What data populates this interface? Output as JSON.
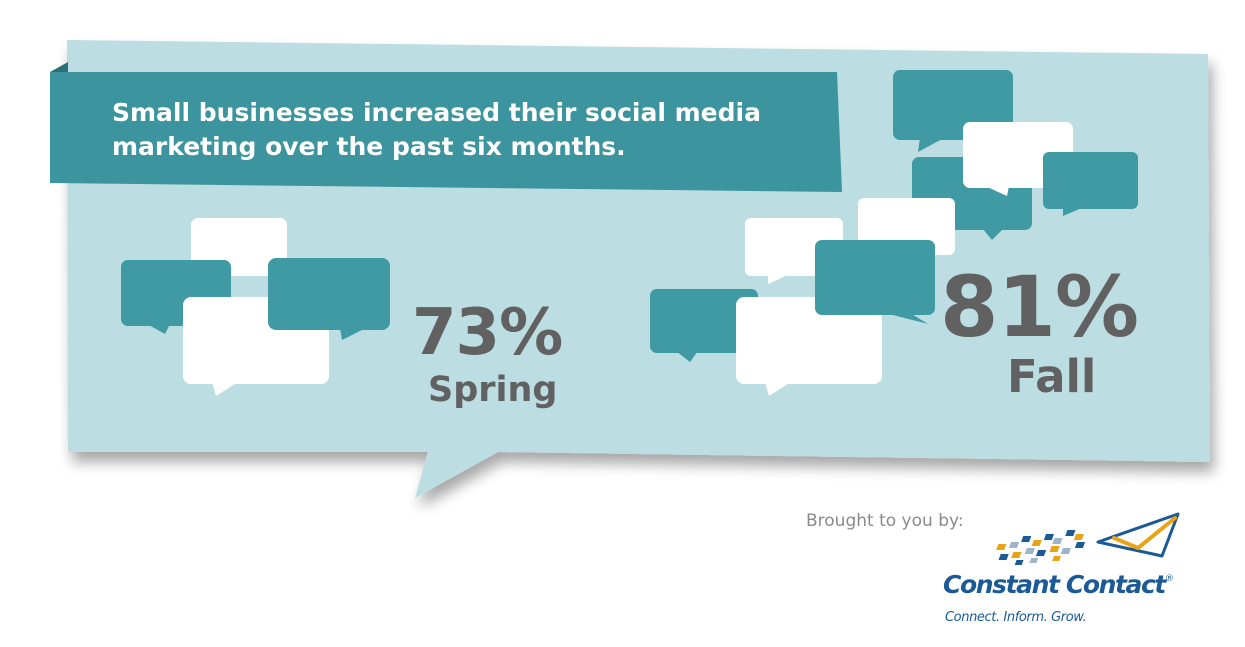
{
  "headline": {
    "line1": "Small businesses increased their social media",
    "line2": "marketing over the past six months."
  },
  "stats": [
    {
      "percent": "73%",
      "season": "Spring"
    },
    {
      "percent": "81%",
      "season": "Fall"
    }
  ],
  "footer": {
    "brought_by": "Brought to you by:",
    "brand_name": "Constant Contact",
    "registered_mark": "®",
    "tagline": "Connect. Inform. Grow."
  },
  "colors": {
    "panel": "#bcdde1",
    "teal": "#3f9aa3",
    "headline_band": "#3c949e",
    "stat_text": "#616161",
    "brand_blue": "#1b5a96"
  },
  "icons": [
    "speech-bubble-icon",
    "envelope-icon"
  ]
}
